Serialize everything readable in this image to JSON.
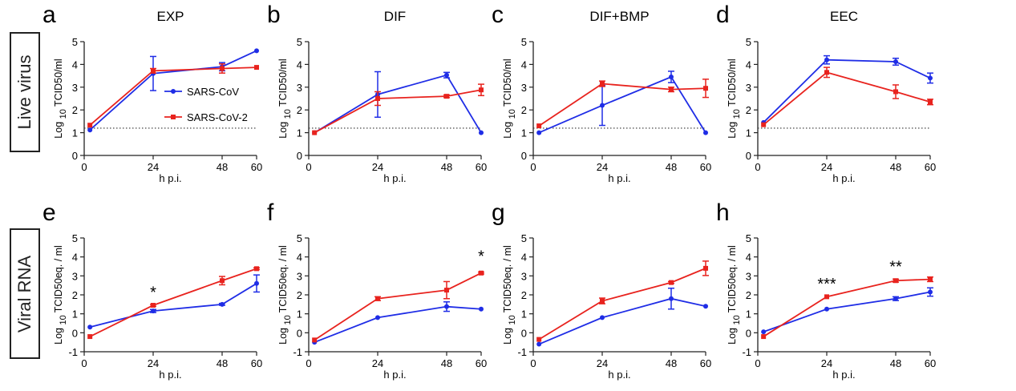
{
  "row_labels": [
    "Live virus",
    "Viral RNA"
  ],
  "colors": {
    "sars_cov": "#1f2de6",
    "sars_cov2": "#e8231e",
    "axis": "#222222"
  },
  "chart_data": [
    {
      "type": "line",
      "letter": "a",
      "title": "EXP",
      "ylabel_main": "TCID50/ml",
      "ylabel_log": "Log",
      "ylabel_sub": "10",
      "xlabel": "h p.i.",
      "xticks": [
        0,
        24,
        48,
        60
      ],
      "yticks": [
        0,
        1,
        2,
        3,
        4,
        5
      ],
      "xlim": [
        0,
        60
      ],
      "ylim": [
        0,
        5
      ],
      "threshold": 1.2,
      "significance": [],
      "legend_position": "center",
      "series": [
        {
          "name": "SARS-CoV",
          "color": "#1f2de6",
          "marker": "circle",
          "x": [
            2,
            24,
            48,
            60
          ],
          "y": [
            1.12,
            3.6,
            3.9,
            4.6
          ],
          "err": [
            0,
            0.75,
            0.18,
            0
          ]
        },
        {
          "name": "SARS-CoV-2",
          "color": "#e8231e",
          "marker": "square",
          "x": [
            2,
            24,
            48,
            60
          ],
          "y": [
            1.33,
            3.72,
            3.82,
            3.87
          ],
          "err": [
            0,
            0.1,
            0.2,
            0
          ]
        }
      ]
    },
    {
      "type": "line",
      "letter": "b",
      "title": "DIF",
      "ylabel_main": "TCID50/ml",
      "ylabel_log": "Log",
      "ylabel_sub": "10",
      "xlabel": "h p.i.",
      "xticks": [
        0,
        24,
        48,
        60
      ],
      "yticks": [
        0,
        1,
        2,
        3,
        4,
        5
      ],
      "xlim": [
        0,
        60
      ],
      "ylim": [
        0,
        5
      ],
      "threshold": 1.2,
      "significance": [],
      "series": [
        {
          "color": "#1f2de6",
          "marker": "circle",
          "x": [
            2,
            24,
            48,
            60
          ],
          "y": [
            1.0,
            2.68,
            3.53,
            1.0
          ],
          "err": [
            0,
            1.0,
            0.12,
            0
          ]
        },
        {
          "color": "#e8231e",
          "marker": "square",
          "x": [
            2,
            24,
            48,
            60
          ],
          "y": [
            1.0,
            2.5,
            2.6,
            2.88
          ],
          "err": [
            0,
            0.3,
            0.06,
            0.25
          ]
        }
      ]
    },
    {
      "type": "line",
      "letter": "c",
      "title": "DIF+BMP",
      "ylabel_main": "TCID50/ml",
      "ylabel_log": "Log",
      "ylabel_sub": "10",
      "xlabel": "h p.i.",
      "xticks": [
        0,
        24,
        48,
        60
      ],
      "yticks": [
        0,
        1,
        2,
        3,
        4,
        5
      ],
      "xlim": [
        0,
        60
      ],
      "ylim": [
        0,
        5
      ],
      "threshold": 1.2,
      "significance": [],
      "series": [
        {
          "color": "#1f2de6",
          "marker": "circle",
          "x": [
            2,
            24,
            48,
            60
          ],
          "y": [
            1.0,
            2.2,
            3.45,
            1.0
          ],
          "err": [
            0,
            0.88,
            0.25,
            0
          ]
        },
        {
          "color": "#e8231e",
          "marker": "square",
          "x": [
            2,
            24,
            48,
            60
          ],
          "y": [
            1.3,
            3.15,
            2.9,
            2.95
          ],
          "err": [
            0,
            0.12,
            0.1,
            0.4
          ]
        }
      ]
    },
    {
      "type": "line",
      "letter": "d",
      "title": "EEC",
      "ylabel_main": "TCID50/ml",
      "ylabel_log": "Log",
      "ylabel_sub": "10",
      "xlabel": "h p.i.",
      "xticks": [
        0,
        24,
        48,
        60
      ],
      "yticks": [
        0,
        1,
        2,
        3,
        4,
        5
      ],
      "xlim": [
        0,
        60
      ],
      "ylim": [
        0,
        5
      ],
      "threshold": 1.2,
      "significance": [],
      "series": [
        {
          "color": "#1f2de6",
          "marker": "circle",
          "x": [
            2,
            24,
            48,
            60
          ],
          "y": [
            1.45,
            4.2,
            4.12,
            3.4
          ],
          "err": [
            0,
            0.18,
            0.15,
            0.22
          ]
        },
        {
          "color": "#e8231e",
          "marker": "square",
          "x": [
            2,
            24,
            48,
            60
          ],
          "y": [
            1.35,
            3.65,
            2.8,
            2.35
          ],
          "err": [
            0,
            0.22,
            0.3,
            0.12
          ]
        }
      ]
    },
    {
      "type": "line",
      "letter": "e",
      "title": "",
      "ylabel_main": "TCID50eq. / ml",
      "ylabel_log": "Log",
      "ylabel_sub": "10",
      "xlabel": "h p.i.",
      "xticks": [
        0,
        24,
        48,
        60
      ],
      "yticks": [
        -1,
        0,
        1,
        2,
        3,
        4,
        5
      ],
      "xlim": [
        0,
        60
      ],
      "ylim": [
        -1,
        5
      ],
      "threshold": null,
      "significance": [
        {
          "x": 24,
          "y": 1.85,
          "text": "*"
        }
      ],
      "series": [
        {
          "color": "#1f2de6",
          "marker": "circle",
          "x": [
            2,
            24,
            48,
            60
          ],
          "y": [
            0.3,
            1.15,
            1.5,
            2.6
          ],
          "err": [
            0,
            0.08,
            0.05,
            0.45
          ]
        },
        {
          "color": "#e8231e",
          "marker": "square",
          "x": [
            2,
            24,
            48,
            60
          ],
          "y": [
            -0.2,
            1.45,
            2.75,
            3.38
          ],
          "err": [
            0,
            0.05,
            0.22,
            0.05
          ]
        }
      ]
    },
    {
      "type": "line",
      "letter": "f",
      "title": "",
      "ylabel_main": "TCID50eq. / ml",
      "ylabel_log": "Log",
      "ylabel_sub": "10",
      "xlabel": "h p.i.",
      "xticks": [
        0,
        24,
        48,
        60
      ],
      "yticks": [
        -1,
        0,
        1,
        2,
        3,
        4,
        5
      ],
      "xlim": [
        0,
        60
      ],
      "ylim": [
        -1,
        5
      ],
      "threshold": null,
      "significance": [
        {
          "x": 60,
          "y": 3.75,
          "text": "*"
        }
      ],
      "series": [
        {
          "color": "#1f2de6",
          "marker": "circle",
          "x": [
            2,
            24,
            48,
            60
          ],
          "y": [
            -0.5,
            0.8,
            1.38,
            1.25
          ],
          "err": [
            0,
            0,
            0.25,
            0
          ]
        },
        {
          "color": "#e8231e",
          "marker": "square",
          "x": [
            2,
            24,
            48,
            60
          ],
          "y": [
            -0.38,
            1.8,
            2.25,
            3.15
          ],
          "err": [
            0,
            0.1,
            0.45,
            0.05
          ]
        }
      ]
    },
    {
      "type": "line",
      "letter": "g",
      "title": "",
      "ylabel_main": "TCID50eq. / ml",
      "ylabel_log": "Log",
      "ylabel_sub": "10",
      "xlabel": "h p.i.",
      "xticks": [
        0,
        24,
        48,
        60
      ],
      "yticks": [
        -1,
        0,
        1,
        2,
        3,
        4,
        5
      ],
      "xlim": [
        0,
        60
      ],
      "ylim": [
        -1,
        5
      ],
      "threshold": null,
      "significance": [],
      "series": [
        {
          "color": "#1f2de6",
          "marker": "circle",
          "x": [
            2,
            24,
            48,
            60
          ],
          "y": [
            -0.6,
            0.8,
            1.8,
            1.4
          ],
          "err": [
            0,
            0,
            0.55,
            0
          ]
        },
        {
          "color": "#e8231e",
          "marker": "square",
          "x": [
            2,
            24,
            48,
            60
          ],
          "y": [
            -0.35,
            1.68,
            2.65,
            3.4
          ],
          "err": [
            0,
            0.15,
            0.05,
            0.38
          ]
        }
      ]
    },
    {
      "type": "line",
      "letter": "h",
      "title": "",
      "ylabel_main": "TCID50eq. / ml",
      "ylabel_log": "Log",
      "ylabel_sub": "10",
      "xlabel": "h p.i.",
      "xticks": [
        0,
        24,
        48,
        60
      ],
      "yticks": [
        -1,
        0,
        1,
        2,
        3,
        4,
        5
      ],
      "xlim": [
        0,
        60
      ],
      "ylim": [
        -1,
        5
      ],
      "threshold": null,
      "significance": [
        {
          "x": 24,
          "y": 2.3,
          "text": "***"
        },
        {
          "x": 48,
          "y": 3.2,
          "text": "**"
        }
      ],
      "series": [
        {
          "color": "#1f2de6",
          "marker": "circle",
          "x": [
            2,
            24,
            48,
            60
          ],
          "y": [
            0.05,
            1.25,
            1.8,
            2.15
          ],
          "err": [
            0,
            0,
            0.1,
            0.22
          ]
        },
        {
          "color": "#e8231e",
          "marker": "square",
          "x": [
            2,
            24,
            48,
            60
          ],
          "y": [
            -0.2,
            1.9,
            2.75,
            2.82
          ],
          "err": [
            0,
            0,
            0.08,
            0.12
          ]
        }
      ]
    }
  ]
}
